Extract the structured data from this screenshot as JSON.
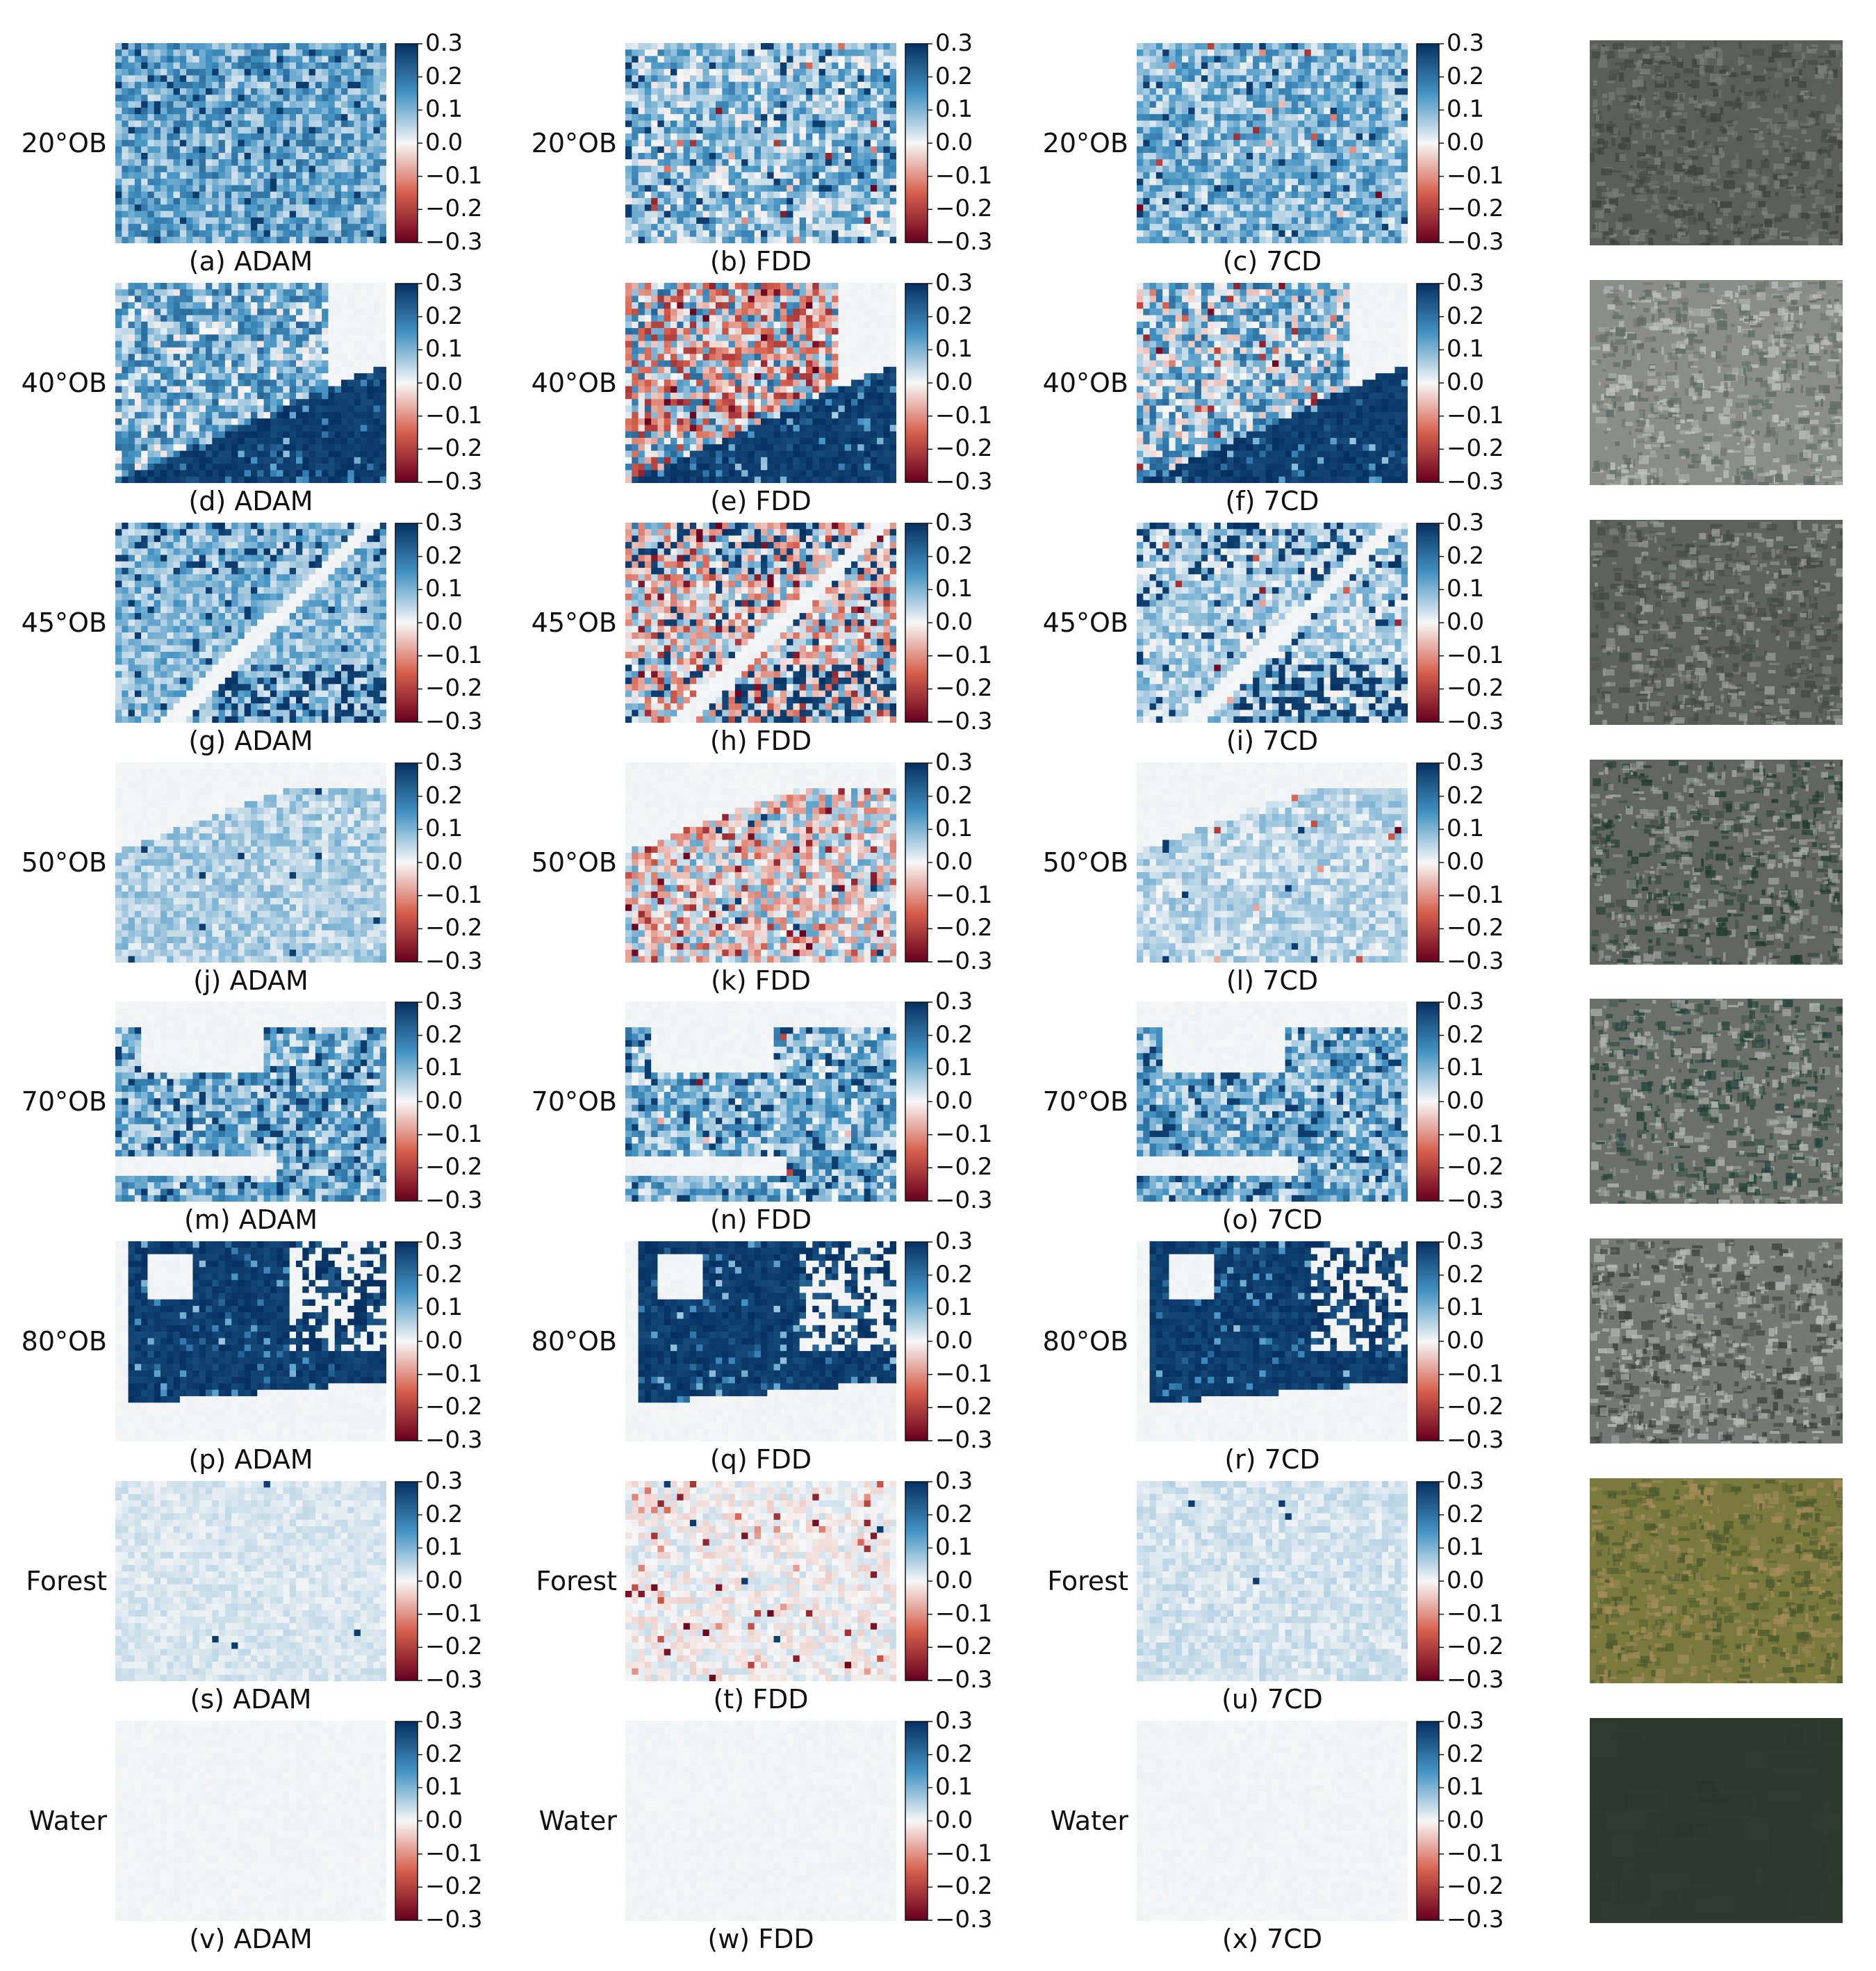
{
  "figure": {
    "colorbar_ticks": [
      "0.3",
      "0.2",
      "0.1",
      "0.0",
      "−0.1",
      "−0.2",
      "−0.3"
    ],
    "colormap": {
      "negative": "#67001f",
      "mid": "#f7f7f7",
      "positive": "#053061"
    },
    "rows": [
      {
        "label": "20°OB",
        "captions": [
          "(a) ADAM",
          "(b) FDD",
          "(c) 7CD"
        ],
        "photo_colors": [
          "#5b5e5a",
          "#3f433e",
          "#7c7f7a"
        ]
      },
      {
        "label": "40°OB",
        "captions": [
          "(d) ADAM",
          "(e) FDD",
          "(f) 7CD"
        ],
        "photo_colors": [
          "#8a8d88",
          "#5f6a66",
          "#bfc2bd"
        ]
      },
      {
        "label": "45°OB",
        "captions": [
          "(g) ADAM",
          "(h) FDD",
          "(i) 7CD"
        ],
        "photo_colors": [
          "#5e625d",
          "#444a45",
          "#9a9d98"
        ]
      },
      {
        "label": "50°OB",
        "captions": [
          "(j) ADAM",
          "(k) FDD",
          "(l) 7CD"
        ],
        "photo_colors": [
          "#626661",
          "#223a30",
          "#a3a6a1"
        ]
      },
      {
        "label": "70°OB",
        "captions": [
          "(m) ADAM",
          "(n) FDD",
          "(o) 7CD"
        ],
        "photo_colors": [
          "#6c706b",
          "#24423a",
          "#b0b3ae"
        ]
      },
      {
        "label": "80°OB",
        "captions": [
          "(p) ADAM",
          "(q) FDD",
          "(r) 7CD"
        ],
        "photo_colors": [
          "#757873",
          "#3d403c",
          "#b8bbb6"
        ]
      },
      {
        "label": "Forest",
        "captions": [
          "(s) ADAM",
          "(t) FDD",
          "(u) 7CD"
        ],
        "photo_colors": [
          "#7a7a3e",
          "#4d5a2c",
          "#a58c5a"
        ]
      },
      {
        "label": "Water",
        "captions": [
          "(v) ADAM",
          "(w) FDD",
          "(x) 7CD"
        ],
        "photo_colors": [
          "#2e3a2e",
          "#253226",
          "#34412f"
        ]
      }
    ]
  }
}
